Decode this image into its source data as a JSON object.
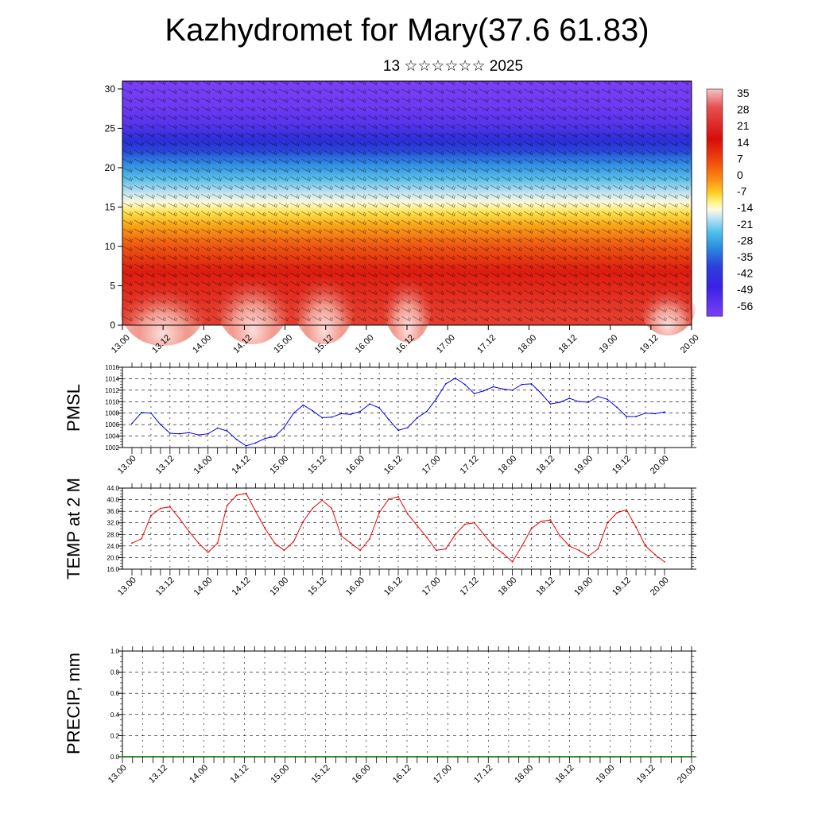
{
  "header": {
    "title": "Kazhydromet for Mary(37.6 61.83)",
    "subtitle": "13 ☆☆☆☆☆☆ 2025"
  },
  "colors": {
    "pmsl_line": "#0000ee",
    "temp_line": "#ee0000",
    "precip_line": "#006400"
  },
  "chart_data": [
    {
      "type": "heatmap",
      "x_ticks": [
        "13.00",
        "13.12",
        "14.00",
        "14.12",
        "15.00",
        "15.12",
        "16.00",
        "16.12",
        "17.00",
        "17.12",
        "18.00",
        "18.12",
        "19.00",
        "19.12",
        "20.00"
      ],
      "y_ticks": [
        0,
        5,
        10,
        15,
        20,
        25,
        30
      ],
      "ylim": [
        0,
        31
      ],
      "colorbar_labels": [
        "35",
        "28",
        "21",
        "14",
        "7",
        "0",
        "-7",
        "-14",
        "-21",
        "-28",
        "-35",
        "-42",
        "-49",
        "-56"
      ],
      "overlay": "wind barbs"
    },
    {
      "type": "line",
      "ylabel": "PMSL",
      "ylim": [
        1002,
        1016
      ],
      "y_ticks": [
        "1002",
        "1004",
        "1006",
        "1008",
        "1010",
        "1012",
        "1014",
        "1016"
      ],
      "x_ticks": [
        "13.00",
        "13.12",
        "14.00",
        "14.12",
        "15.00",
        "15.12",
        "16.00",
        "16.12",
        "17.00",
        "17.12",
        "18.00",
        "18.12",
        "19.00",
        "19.12",
        "20.00"
      ],
      "x_step_hours": 3,
      "values": [
        1006.2,
        1008.1,
        1008.0,
        1006.0,
        1004.5,
        1004.4,
        1004.6,
        1004.2,
        1004.4,
        1005.4,
        1004.9,
        1003.4,
        1002.3,
        1002.8,
        1003.6,
        1003.9,
        1005.5,
        1008.0,
        1009.4,
        1008.4,
        1007.2,
        1007.3,
        1007.9,
        1007.8,
        1008.3,
        1009.6,
        1008.9,
        1006.9,
        1005.0,
        1005.5,
        1007.2,
        1008.3,
        1010.5,
        1013.1,
        1014.1,
        1013.0,
        1011.4,
        1011.9,
        1012.6,
        1012.2,
        1012.0,
        1013.0,
        1013.1,
        1011.5,
        1009.6,
        1009.9,
        1010.6,
        1010.0,
        1009.9,
        1010.9,
        1010.4,
        1009.0,
        1007.4,
        1007.4,
        1008.0,
        1007.9,
        1008.2
      ]
    },
    {
      "type": "line",
      "ylabel": "TEMP at 2 M",
      "ylim": [
        16,
        44
      ],
      "y_ticks": [
        "16.0",
        "20.0",
        "24.0",
        "28.0",
        "32.0",
        "36.0",
        "40.0",
        "44.0"
      ],
      "x_ticks": [
        "13.00",
        "13.12",
        "14.00",
        "14.12",
        "15.00",
        "15.12",
        "16.00",
        "16.12",
        "17.00",
        "17.12",
        "18.00",
        "18.12",
        "19.00",
        "19.12",
        "20.00"
      ],
      "x_step_hours": 3,
      "values": [
        25,
        26.5,
        34.5,
        37,
        37.5,
        33.5,
        29,
        25,
        21.8,
        25,
        38,
        41.5,
        42.2,
        36,
        30,
        25,
        22.5,
        25.5,
        32.5,
        37,
        39.8,
        37,
        27.5,
        25,
        22.5,
        26.5,
        35.5,
        40.2,
        41,
        35,
        31,
        27,
        22.5,
        23,
        28,
        31.5,
        32,
        28,
        24,
        21.5,
        18.5,
        24,
        30,
        32.5,
        33,
        27.5,
        24,
        22.5,
        20.5,
        23,
        32,
        35.5,
        36.5,
        30.5,
        24,
        21,
        18.5
      ]
    },
    {
      "type": "line",
      "ylabel": "PRECIP, mm",
      "ylim": [
        0,
        1
      ],
      "y_ticks": [
        "0.0",
        "0.2",
        "0.4",
        "0.6",
        "0.8",
        "1.0"
      ],
      "x_ticks": [
        "13.00",
        "13.12",
        "14.00",
        "14.12",
        "15.00",
        "15.12",
        "16.00",
        "16.12",
        "17.00",
        "17.12",
        "18.00",
        "18.12",
        "19.00",
        "19.12",
        "20.00"
      ],
      "x_step_hours": 3,
      "values": [
        0,
        0,
        0,
        0,
        0,
        0,
        0,
        0,
        0,
        0,
        0,
        0,
        0,
        0,
        0,
        0,
        0,
        0,
        0,
        0,
        0,
        0,
        0,
        0,
        0,
        0,
        0,
        0,
        0,
        0,
        0,
        0,
        0,
        0,
        0,
        0,
        0,
        0,
        0,
        0,
        0,
        0,
        0,
        0,
        0,
        0,
        0,
        0,
        0,
        0,
        0,
        0,
        0,
        0,
        0,
        0,
        0
      ]
    }
  ]
}
